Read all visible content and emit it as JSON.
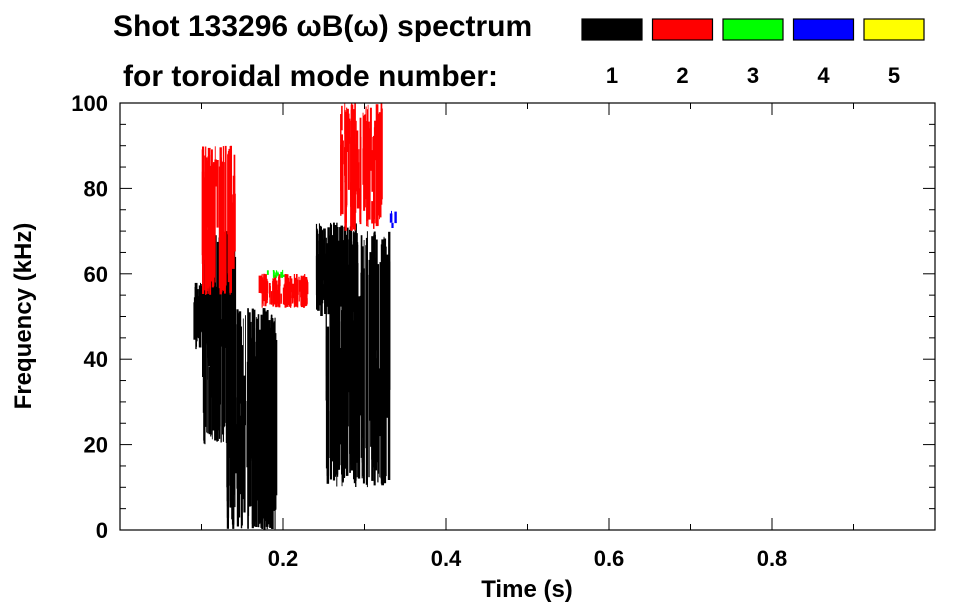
{
  "chart_data": {
    "type": "heatmap",
    "title_line1": "Shot 133296 ωB(ω) spectrum",
    "title_line2": "for toroidal mode number:",
    "xlabel": "Time (s)",
    "ylabel": "Frequency (kHz)",
    "xlim": [
      0.0,
      1.0
    ],
    "ylim": [
      0,
      100
    ],
    "xticks": [
      0.2,
      0.4,
      0.6,
      0.8
    ],
    "xtick_labels": [
      "0.2",
      "0.4",
      "0.6",
      "0.8"
    ],
    "yticks": [
      0,
      20,
      40,
      60,
      80,
      100
    ],
    "ytick_labels": [
      "0",
      "20",
      "40",
      "60",
      "80",
      "100"
    ],
    "grid": false,
    "legend_placement": "top-right",
    "legend": [
      {
        "label": "1",
        "color": "#000000"
      },
      {
        "label": "2",
        "color": "#ff0000"
      },
      {
        "label": "3",
        "color": "#00ff00"
      },
      {
        "label": "4",
        "color": "#0000ff"
      },
      {
        "label": "5",
        "color": "#ffff00"
      }
    ],
    "activity": {
      "mode_1_black": [
        {
          "t": [
            0.09,
            0.13
          ],
          "f": [
            42,
            58
          ],
          "note_value": "blob near 50 kHz"
        },
        {
          "t": [
            0.1,
            0.14
          ],
          "f": [
            20,
            70
          ]
        },
        {
          "t": [
            0.13,
            0.19
          ],
          "f": [
            0,
            52
          ]
        },
        {
          "t": [
            0.17,
            0.19
          ],
          "f": [
            0,
            50
          ]
        },
        {
          "t": [
            0.24,
            0.29
          ],
          "f": [
            50,
            72
          ]
        },
        {
          "t": [
            0.25,
            0.33
          ],
          "f": [
            10,
            70
          ]
        }
      ],
      "mode_2_red": [
        {
          "t": [
            0.1,
            0.14
          ],
          "f": [
            55,
            90
          ]
        },
        {
          "t": [
            0.17,
            0.23
          ],
          "f": [
            52,
            60
          ]
        },
        {
          "t": [
            0.27,
            0.32
          ],
          "f": [
            70,
            100
          ]
        }
      ],
      "mode_3_green": [
        {
          "t": [
            0.18,
            0.2
          ],
          "f": [
            59,
            61
          ]
        }
      ],
      "mode_4_blue": [
        {
          "t": [
            0.33,
            0.34
          ],
          "f": [
            70,
            75
          ]
        }
      ]
    }
  }
}
